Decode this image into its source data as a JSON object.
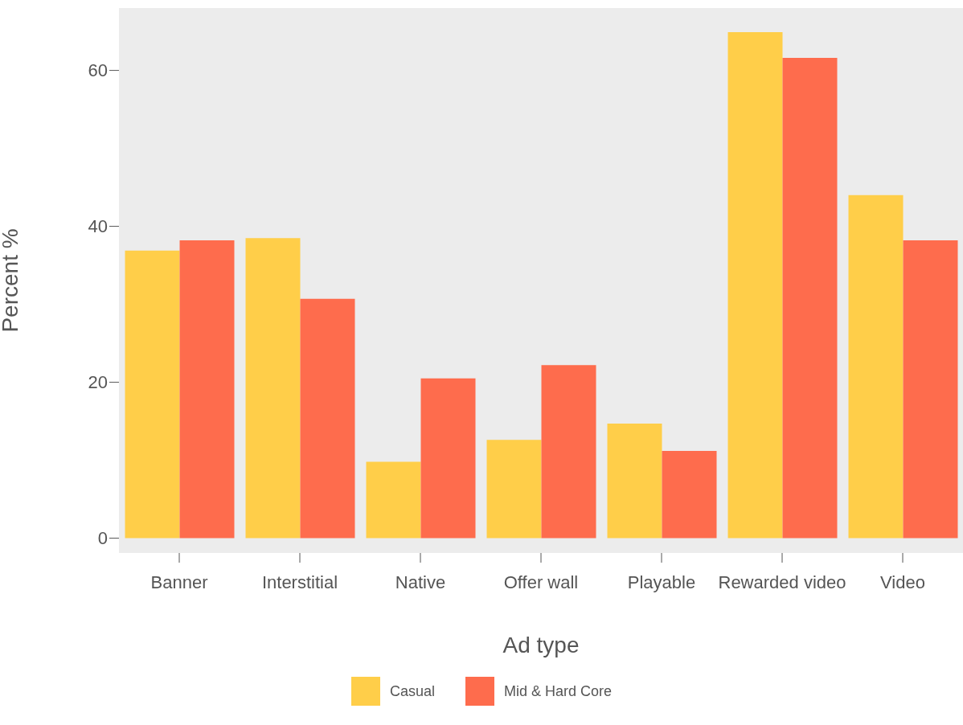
{
  "chart_data": {
    "type": "bar",
    "xlabel": "Ad type",
    "ylabel": "Percent %",
    "categories": [
      "Banner",
      "Interstitial",
      "Native",
      "Offer wall",
      "Playable",
      "Rewarded video",
      "Video"
    ],
    "series": [
      {
        "name": "Casual",
        "color": "#ffce49",
        "values": [
          36.9,
          38.5,
          9.8,
          12.6,
          14.7,
          64.9,
          44.0
        ]
      },
      {
        "name": "Mid & Hard Core",
        "color": "#fe6c4d",
        "values": [
          38.2,
          30.7,
          20.5,
          22.2,
          11.2,
          61.6,
          38.2
        ]
      }
    ],
    "ylim": [
      -1.9,
      68
    ],
    "yticks": [
      0,
      20,
      40,
      60
    ],
    "grid": false,
    "legend": "bottom"
  }
}
